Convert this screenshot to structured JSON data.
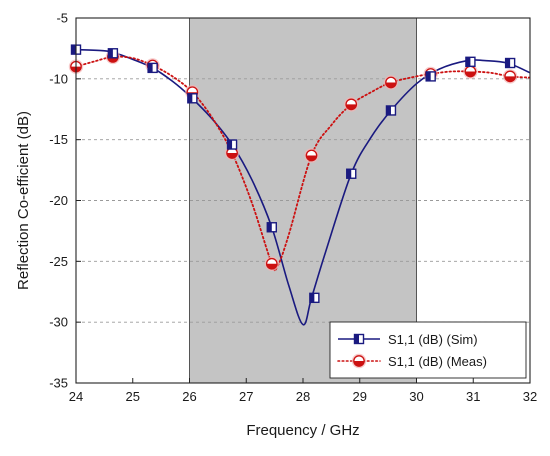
{
  "chart_data": {
    "type": "line",
    "title": "",
    "xlabel": "Frequency / GHz",
    "ylabel": "Reflection Co-efficient (dB)",
    "xlim": [
      24,
      32
    ],
    "ylim": [
      -35,
      -5
    ],
    "x_ticks": [
      24,
      25,
      26,
      27,
      28,
      29,
      30,
      31,
      32
    ],
    "y_ticks": [
      -35,
      -30,
      -25,
      -20,
      -15,
      -10,
      -5
    ],
    "shaded_band": {
      "x_start": 26,
      "x_end": 30,
      "color": "#c4c4c4"
    },
    "grid": {
      "horizontal": true,
      "style": "dashed",
      "color": "#9a9a9a"
    },
    "legend_position": "bottom-right",
    "series": [
      {
        "name": "S1,1 (dB) (Sim)",
        "color": "#1a1a80",
        "line_style": "solid",
        "marker": "half-filled-square",
        "curve": [
          [
            24,
            -7.6
          ],
          [
            24.5,
            -7.7
          ],
          [
            24.7,
            -7.9
          ],
          [
            25,
            -8.4
          ],
          [
            25.35,
            -9.1
          ],
          [
            25.7,
            -10.2
          ],
          [
            26,
            -11.4
          ],
          [
            26.4,
            -13.3
          ],
          [
            26.75,
            -15.4
          ],
          [
            27.1,
            -18.3
          ],
          [
            27.45,
            -22.2
          ],
          [
            27.75,
            -27.0
          ],
          [
            28.0,
            -30.2
          ],
          [
            28.15,
            -28.0
          ],
          [
            28.4,
            -24.2
          ],
          [
            28.85,
            -17.8
          ],
          [
            29.2,
            -14.8
          ],
          [
            29.55,
            -12.6
          ],
          [
            30.0,
            -10.4
          ],
          [
            30.4,
            -9.2
          ],
          [
            30.9,
            -8.5
          ],
          [
            31.2,
            -8.5
          ],
          [
            31.6,
            -8.7
          ],
          [
            32,
            -9.5
          ]
        ],
        "markers": [
          [
            24,
            -7.6
          ],
          [
            24.65,
            -7.9
          ],
          [
            25.35,
            -9.1
          ],
          [
            26.05,
            -11.6
          ],
          [
            26.75,
            -15.4
          ],
          [
            27.45,
            -22.2
          ],
          [
            28.2,
            -28.0
          ],
          [
            28.85,
            -17.8
          ],
          [
            29.55,
            -12.6
          ],
          [
            30.25,
            -9.8
          ],
          [
            30.95,
            -8.6
          ],
          [
            31.65,
            -8.7
          ]
        ]
      },
      {
        "name": "S1,1 (dB) (Meas)",
        "color": "#cc1111",
        "line_style": "dotted",
        "marker": "half-filled-circle",
        "curve": [
          [
            24,
            -9.0
          ],
          [
            24.3,
            -8.6
          ],
          [
            24.65,
            -8.2
          ],
          [
            25.0,
            -8.3
          ],
          [
            25.35,
            -8.9
          ],
          [
            25.7,
            -9.8
          ],
          [
            26.05,
            -11.1
          ],
          [
            26.4,
            -13.2
          ],
          [
            26.75,
            -16.1
          ],
          [
            27.1,
            -20.2
          ],
          [
            27.45,
            -25.2
          ],
          [
            27.55,
            -25.4
          ],
          [
            27.75,
            -22.8
          ],
          [
            28.15,
            -16.3
          ],
          [
            28.5,
            -13.8
          ],
          [
            28.85,
            -12.1
          ],
          [
            29.2,
            -11.1
          ],
          [
            29.55,
            -10.3
          ],
          [
            30.0,
            -9.8
          ],
          [
            30.25,
            -9.6
          ],
          [
            30.6,
            -9.4
          ],
          [
            30.95,
            -9.4
          ],
          [
            31.3,
            -9.5
          ],
          [
            31.65,
            -9.8
          ],
          [
            32,
            -9.9
          ]
        ],
        "markers": [
          [
            24,
            -9.0
          ],
          [
            24.65,
            -8.2
          ],
          [
            25.35,
            -8.9
          ],
          [
            26.05,
            -11.1
          ],
          [
            26.75,
            -16.1
          ],
          [
            27.45,
            -25.2
          ],
          [
            28.15,
            -16.3
          ],
          [
            28.85,
            -12.1
          ],
          [
            29.55,
            -10.3
          ],
          [
            30.25,
            -9.6
          ],
          [
            30.95,
            -9.4
          ],
          [
            31.65,
            -9.8
          ]
        ]
      }
    ]
  }
}
